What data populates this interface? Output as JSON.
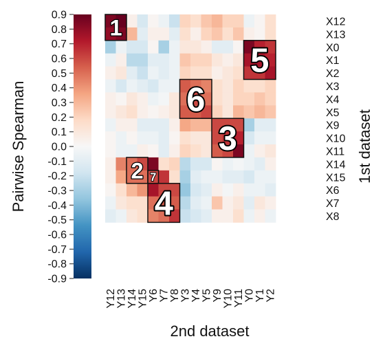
{
  "chart_data": {
    "type": "heatmap",
    "title": "",
    "xlabel": "2nd dataset",
    "ylabel": "1st dataset",
    "colorbar_label": "Pairwise Spearman",
    "colorbar_ticks": [
      "0.9",
      "0.8",
      "0.7",
      "0.6",
      "0.5",
      "0.4",
      "0.3",
      "0.2",
      "0.1",
      "0.0",
      "-0.1",
      "-0.2",
      "-0.3",
      "-0.4",
      "-0.5",
      "-0.6",
      "-0.7",
      "-0.8",
      "-0.9"
    ],
    "vmin": -0.9,
    "vmax": 0.9,
    "colormap": "RdBu_r",
    "x_categories": [
      "Y12",
      "Y13",
      "Y14",
      "Y15",
      "Y6",
      "Y7",
      "Y8",
      "Y3",
      "Y4",
      "Y5",
      "Y9",
      "Y10",
      "Y11",
      "Y0",
      "Y1",
      "Y2"
    ],
    "y_categories": [
      "X12",
      "X13",
      "X0",
      "X1",
      "X2",
      "X3",
      "X4",
      "X5",
      "X9",
      "X10",
      "X11",
      "X14",
      "X15",
      "X6",
      "X7",
      "X8"
    ],
    "values": [
      [
        0.85,
        0.9,
        0.05,
        -0.15,
        0.02,
        -0.05,
        -0.2,
        0.2,
        0.15,
        0.25,
        0.3,
        0.2,
        0.2,
        -0.05,
        0.02,
        0.15
      ],
      [
        0.8,
        0.85,
        0.3,
        -0.1,
        0.05,
        0.05,
        -0.1,
        0.15,
        0.05,
        0.2,
        0.25,
        0.15,
        0.25,
        0.05,
        0.02,
        0.15
      ],
      [
        -0.3,
        -0.05,
        -0.15,
        -0.15,
        0.02,
        -0.3,
        -0.05,
        0.1,
        0.1,
        0.05,
        -0.1,
        -0.1,
        0.02,
        0.85,
        0.7,
        0.65
      ],
      [
        -0.05,
        0.05,
        -0.25,
        -0.25,
        -0.1,
        -0.1,
        -0.05,
        0.25,
        0.2,
        0.2,
        0.1,
        0.05,
        0.1,
        0.75,
        0.75,
        0.7
      ],
      [
        0.05,
        0.1,
        -0.1,
        -0.2,
        -0.05,
        -0.1,
        -0.05,
        0.2,
        0.15,
        0.15,
        0.05,
        0.1,
        0.15,
        0.65,
        0.65,
        0.75
      ],
      [
        -0.05,
        -0.15,
        -0.05,
        -0.1,
        -0.15,
        -0.05,
        -0.05,
        0.55,
        0.5,
        0.45,
        0.15,
        0.1,
        0.2,
        0.15,
        0.15,
        0.2
      ],
      [
        0.05,
        0.02,
        0.1,
        0.05,
        -0.05,
        -0.02,
        0.1,
        0.5,
        0.6,
        0.5,
        0.15,
        0.1,
        0.2,
        0.2,
        0.25,
        0.2
      ],
      [
        0.05,
        0.1,
        0.15,
        0.05,
        0.02,
        0.05,
        0.1,
        0.55,
        0.55,
        0.6,
        0.2,
        0.1,
        0.3,
        0.25,
        0.3,
        0.25
      ],
      [
        -0.05,
        0.05,
        0.05,
        -0.1,
        -0.1,
        -0.1,
        0.05,
        0.35,
        0.3,
        0.3,
        0.6,
        0.6,
        0.6,
        -0.3,
        -0.1,
        -0.1
      ],
      [
        0.02,
        -0.05,
        0.02,
        -0.05,
        -0.05,
        -0.1,
        0.02,
        0.15,
        0.1,
        0.1,
        0.6,
        0.65,
        0.7,
        -0.15,
        -0.05,
        -0.05
      ],
      [
        0.02,
        -0.05,
        -0.05,
        0.05,
        0.02,
        -0.1,
        0.05,
        0.2,
        0.15,
        0.1,
        0.55,
        0.6,
        0.85,
        -0.05,
        0.05,
        0.1
      ],
      [
        0.05,
        0.45,
        0.5,
        0.6,
        0.85,
        0.15,
        0.2,
        -0.25,
        -0.15,
        -0.15,
        0.02,
        -0.05,
        -0.02,
        -0.05,
        -0.1,
        0.05
      ],
      [
        0.05,
        0.35,
        0.5,
        0.5,
        0.6,
        0.65,
        0.15,
        -0.3,
        -0.1,
        -0.05,
        -0.05,
        -0.1,
        -0.1,
        -0.15,
        -0.05,
        -0.05
      ],
      [
        0.02,
        0.15,
        0.3,
        0.4,
        0.75,
        0.6,
        0.6,
        -0.35,
        -0.15,
        -0.1,
        0.05,
        -0.02,
        0.05,
        -0.05,
        -0.05,
        -0.1
      ],
      [
        -0.05,
        0.1,
        0.15,
        0.15,
        0.5,
        0.55,
        0.55,
        -0.25,
        -0.1,
        -0.05,
        0.25,
        0.05,
        0.1,
        -0.1,
        0.1,
        0.05
      ],
      [
        -0.1,
        -0.05,
        0.1,
        0.15,
        0.45,
        0.5,
        0.65,
        -0.2,
        -0.15,
        -0.1,
        0.05,
        0.05,
        0.15,
        -0.05,
        0.05,
        -0.05
      ]
    ],
    "clusters": [
      {
        "label": "1",
        "x_range": [
          "Y12",
          "Y13"
        ],
        "y_range": [
          "X12",
          "X13"
        ]
      },
      {
        "label": "5",
        "x_range": [
          "Y0",
          "Y2"
        ],
        "y_range": [
          "X0",
          "X2"
        ]
      },
      {
        "label": "6",
        "x_range": [
          "Y3",
          "Y5"
        ],
        "y_range": [
          "X3",
          "X5"
        ]
      },
      {
        "label": "3",
        "x_range": [
          "Y9",
          "Y11"
        ],
        "y_range": [
          "X9",
          "X11"
        ]
      },
      {
        "label": "2",
        "x_range": [
          "Y14",
          "Y15"
        ],
        "y_range": [
          "X14",
          "X15"
        ]
      },
      {
        "label": "7",
        "x_range": [
          "Y6",
          "Y6"
        ],
        "y_range": [
          "X15",
          "X15"
        ]
      },
      {
        "label": "4",
        "x_range": [
          "Y6",
          "Y8"
        ],
        "y_range": [
          "X6",
          "X8"
        ]
      }
    ]
  }
}
